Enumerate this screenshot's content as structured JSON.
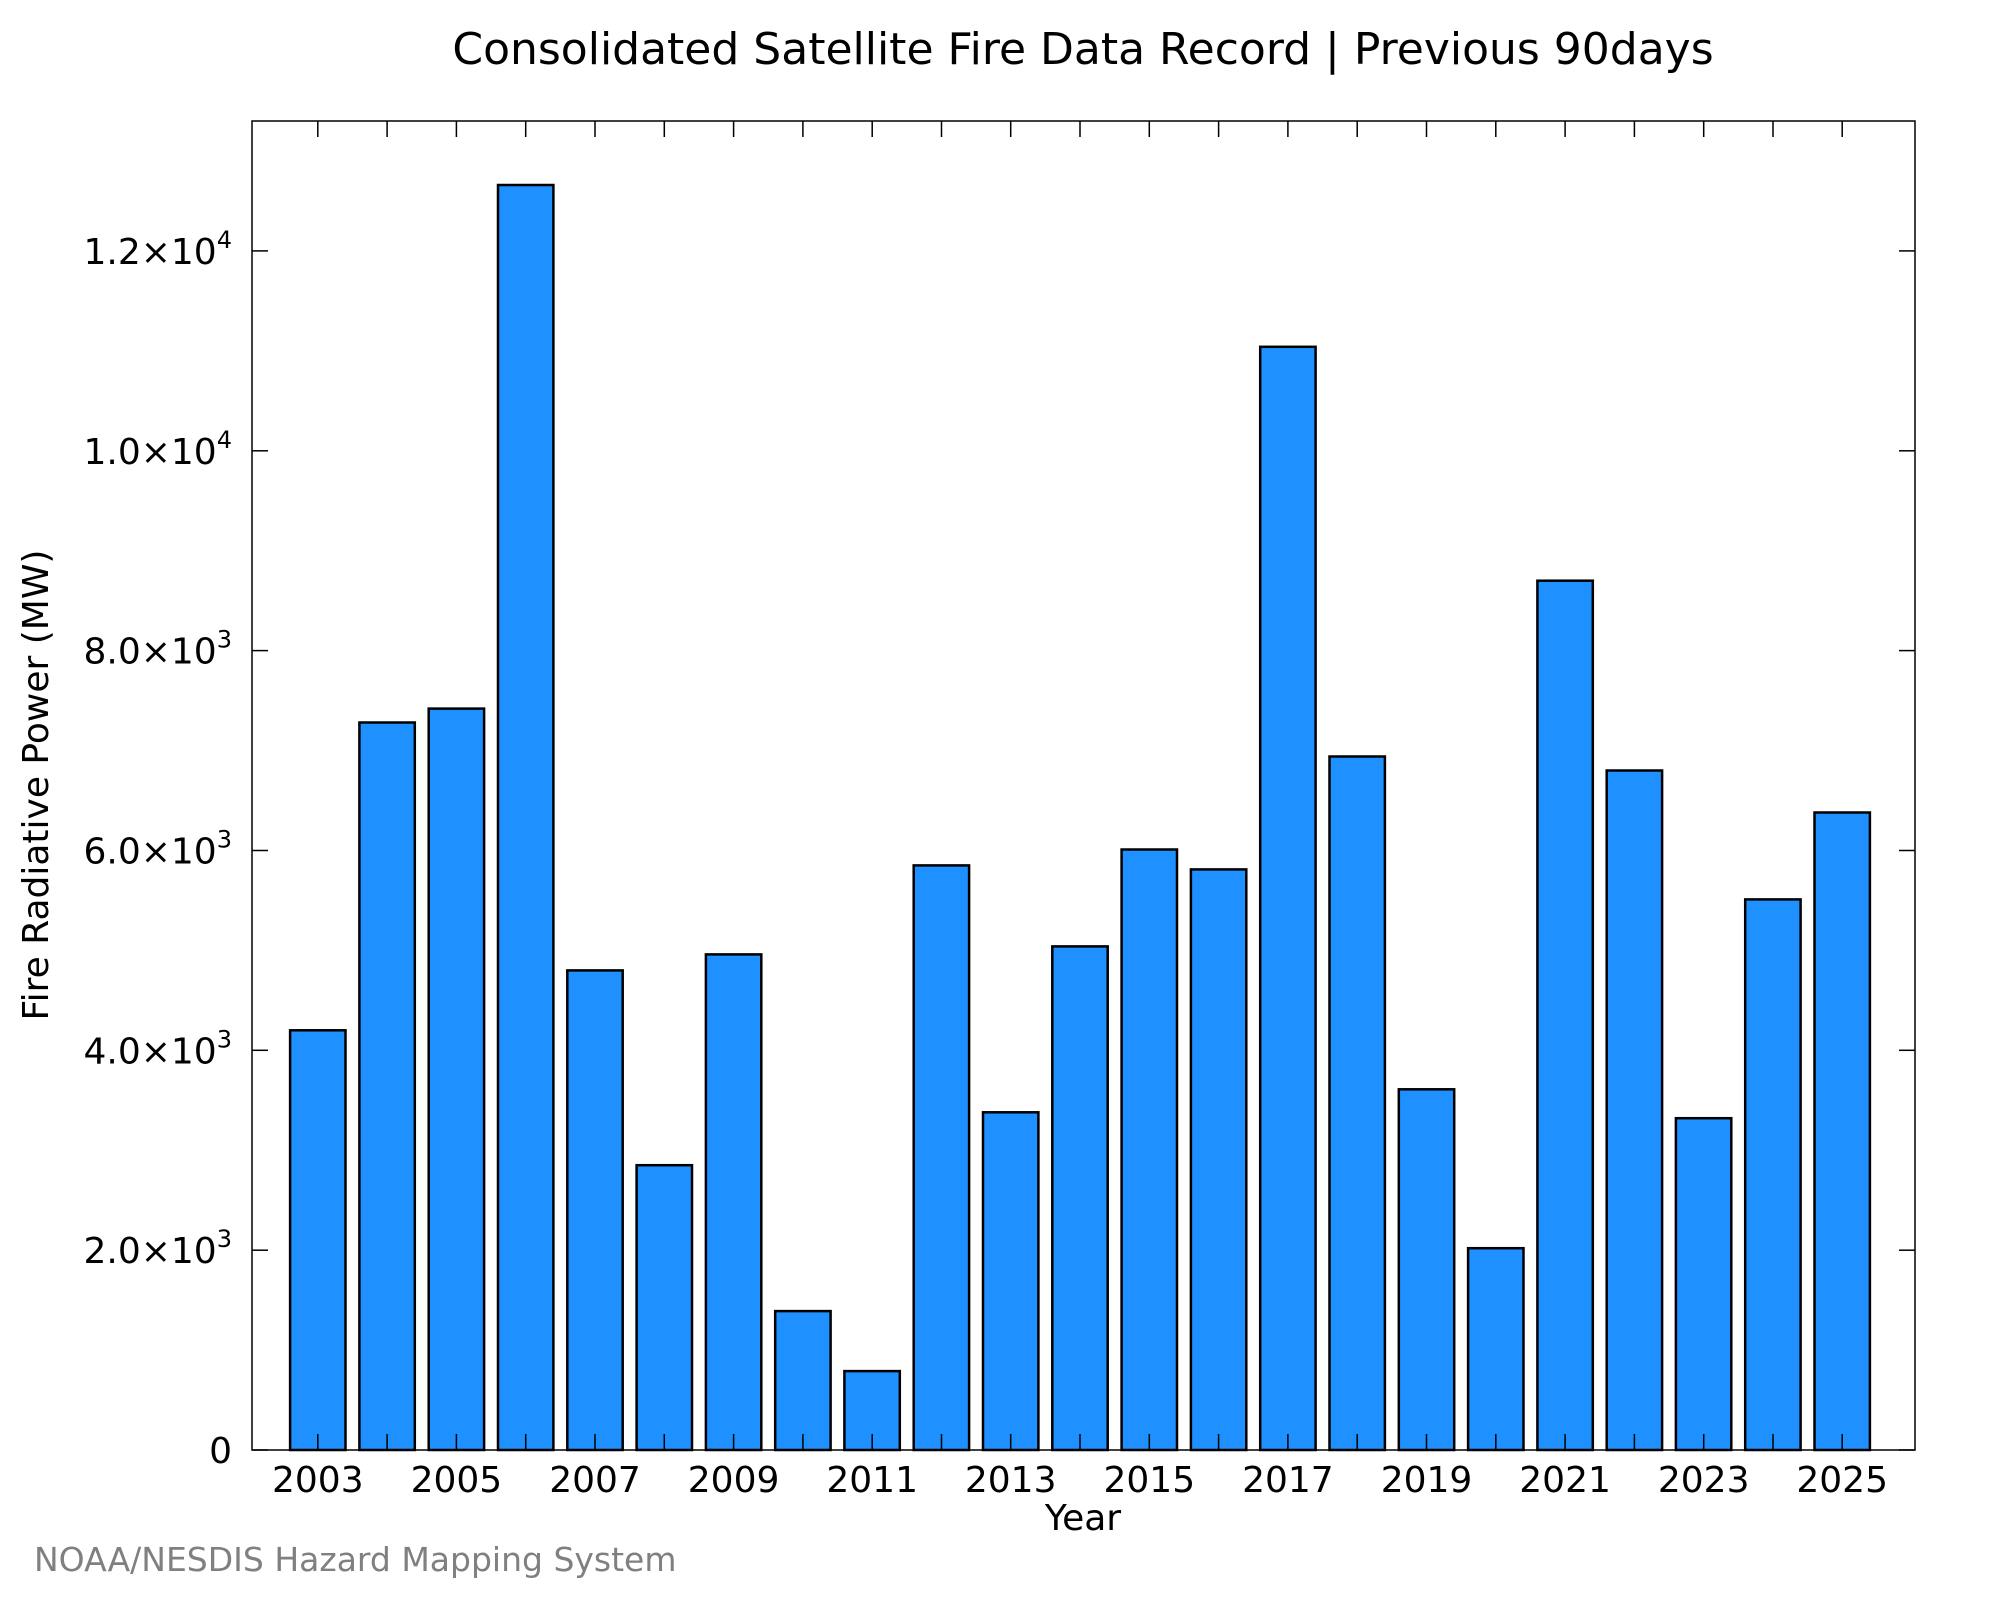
{
  "chart_data": {
    "type": "bar",
    "title": "Consolidated Satellite Fire Data Record | Previous 90days",
    "xlabel": "Year",
    "ylabel": "Fire Radiative Power (MW)",
    "categories": [
      "2003",
      "2004",
      "2005",
      "2006",
      "2007",
      "2008",
      "2009",
      "2010",
      "2011",
      "2012",
      "2013",
      "2014",
      "2015",
      "2016",
      "2017",
      "2018",
      "2019",
      "2020",
      "2021",
      "2022",
      "2023",
      "2024",
      "2025"
    ],
    "values": [
      4200,
      7280,
      7420,
      12660,
      4800,
      2850,
      4960,
      1390,
      790,
      5850,
      3380,
      5040,
      6010,
      5810,
      11040,
      6940,
      3610,
      2020,
      8700,
      6800,
      3320,
      5510,
      6380
    ],
    "x_tick_labels": [
      "2003",
      "2005",
      "2007",
      "2009",
      "2011",
      "2013",
      "2015",
      "2017",
      "2019",
      "2021",
      "2023",
      "2025"
    ],
    "y_ticks": [
      {
        "value": 0,
        "mantissa": "0",
        "exp": ""
      },
      {
        "value": 2000,
        "mantissa": "2.0×10",
        "exp": "3"
      },
      {
        "value": 4000,
        "mantissa": "4.0×10",
        "exp": "3"
      },
      {
        "value": 6000,
        "mantissa": "6.0×10",
        "exp": "3"
      },
      {
        "value": 8000,
        "mantissa": "8.0×10",
        "exp": "3"
      },
      {
        "value": 10000,
        "mantissa": "1.0×10",
        "exp": "4"
      },
      {
        "value": 12000,
        "mantissa": "1.2×10",
        "exp": "4"
      }
    ],
    "ylim": [
      0,
      13300
    ],
    "xlim": [
      2002.05,
      2026.05
    ],
    "grid": false,
    "legend": "none",
    "bar_color": "#1E90FF",
    "edge_color": "#000000"
  },
  "credit": "NOAA/NESDIS Hazard Mapping System"
}
